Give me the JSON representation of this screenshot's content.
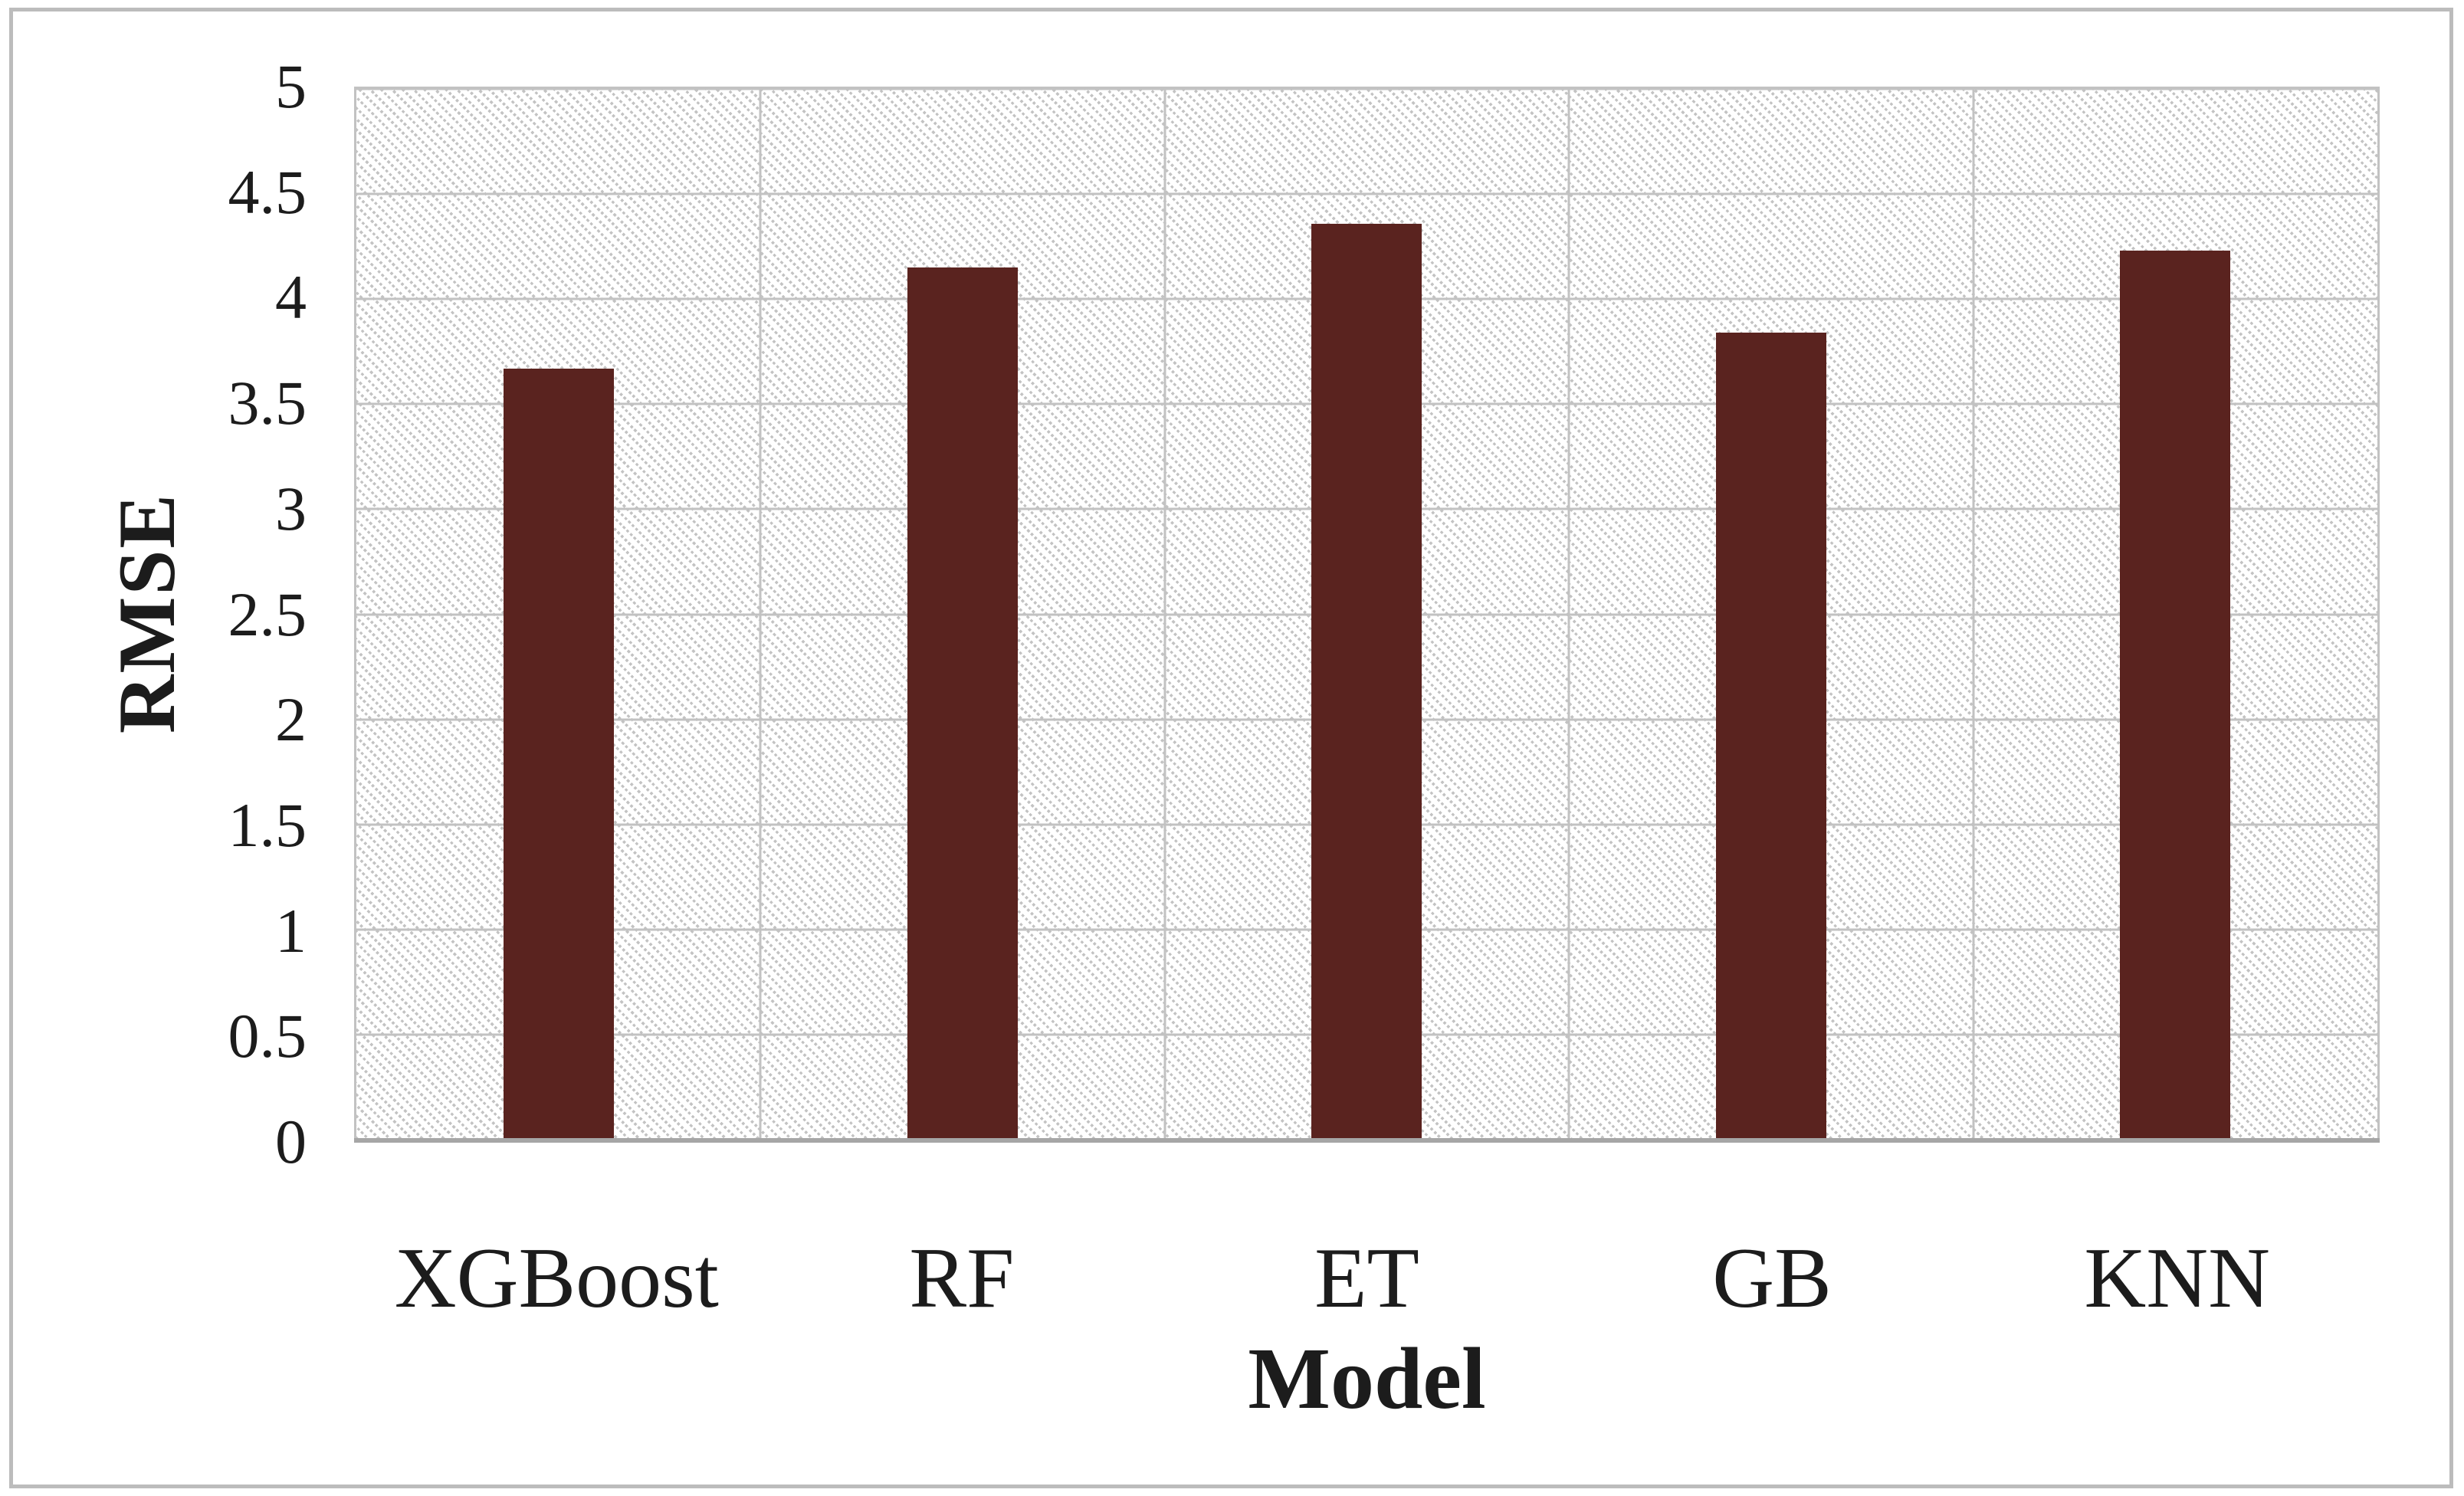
{
  "chart_data": {
    "type": "bar",
    "title": "",
    "categories": [
      "XGBoost",
      "RF",
      "ET",
      "GB",
      "KNN"
    ],
    "values": [
      3.67,
      4.15,
      4.36,
      3.84,
      4.23
    ],
    "xlabel": "Model",
    "ylabel": "RMSE",
    "ylim": [
      0,
      5
    ],
    "ytick_step": 0.5,
    "yticks": [
      "0",
      "0.5",
      "1",
      "1.5",
      "2",
      "2.5",
      "3",
      "3.5",
      "4",
      "4.5",
      "5"
    ],
    "grid": "horizontal major gridlines plus vertical category-boundary lines",
    "legend": "none",
    "bar_color": "#5a231f",
    "plot_background": "white with light gray dotted diagonal hatch pattern",
    "series": [
      {
        "name": "RMSE",
        "values": [
          3.67,
          4.15,
          4.36,
          3.84,
          4.23
        ]
      }
    ]
  },
  "colors": {
    "bar": "#5a231f",
    "gridline": "#c2c2c2",
    "axis_line": "#a6a6a6",
    "outer_border": "#bcbcbc",
    "hatch_dot": "#c3c3c3",
    "text": "#1c1c1c",
    "background": "#ffffff"
  }
}
